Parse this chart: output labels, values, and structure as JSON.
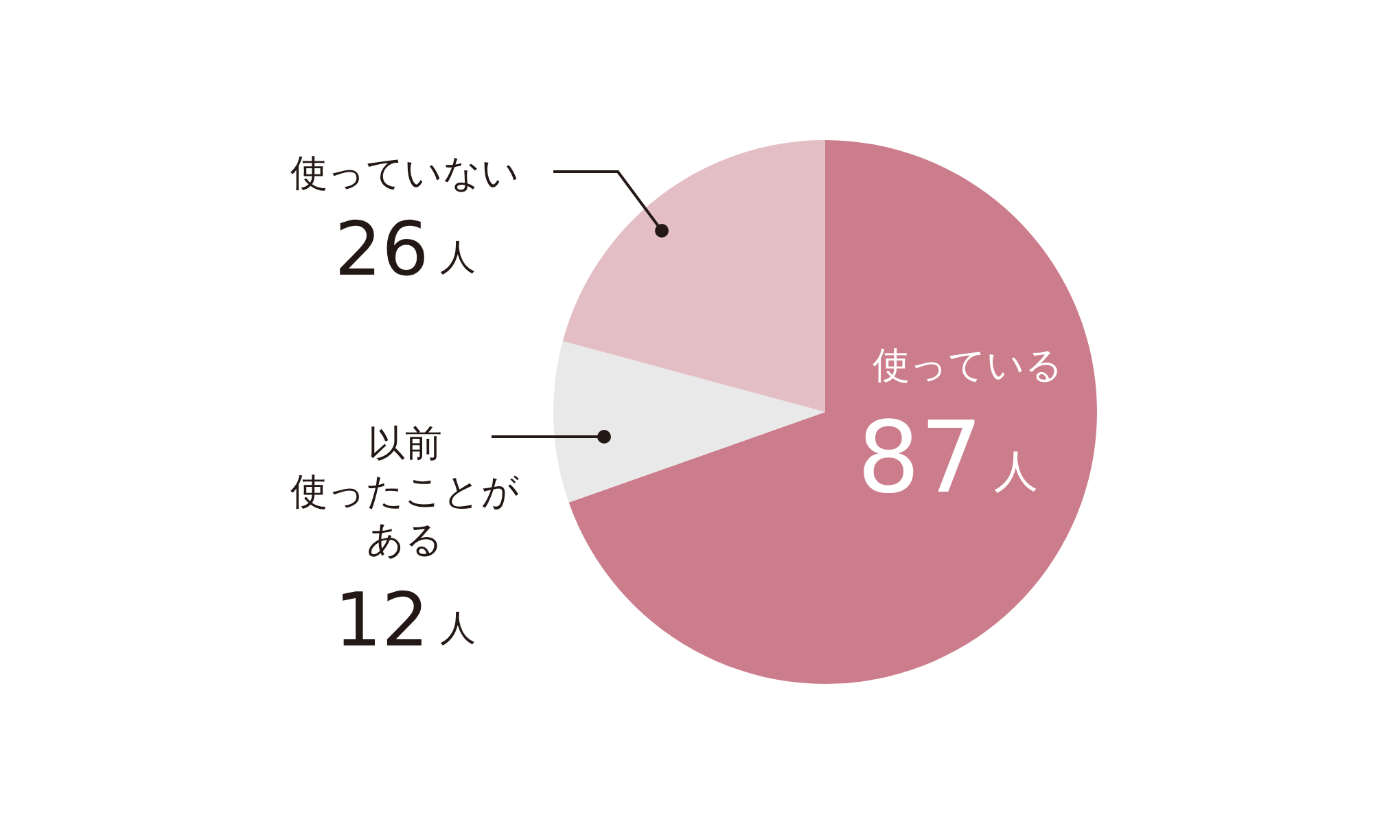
{
  "chart_data": {
    "type": "pie",
    "categories": [
      "使っている",
      "以前使ったことがある",
      "使っていない"
    ],
    "values": [
      87,
      12,
      26
    ],
    "colors": [
      "#cb7d8b",
      "#e9e9e9",
      "#e4bec5"
    ],
    "value_labels": [
      "87人",
      "12人",
      "26人"
    ]
  }
}
